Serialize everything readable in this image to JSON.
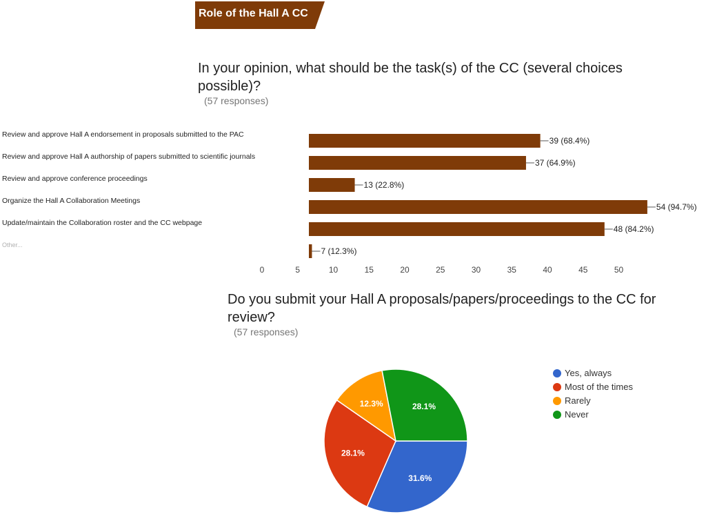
{
  "section": {
    "title": "Role of the Hall A CC",
    "color": "#7f3b08"
  },
  "chart_data": [
    {
      "type": "bar",
      "orientation": "horizontal",
      "title": "In your opinion, what should be the task(s) of the CC (several choices possible)?",
      "responses_label": "(57 responses)",
      "categories": [
        "Review and approve Hall A endorsement in proposals submitted to the PAC",
        "Review and approve Hall A authorship of papers submitted to scientific journals",
        "Review and approve conference proceedings",
        "Organize the Hall A Collaboration Meetings",
        "Update/maintain the Collaboration roster and the CC webpage",
        "Other..."
      ],
      "values": [
        39,
        37,
        13,
        54,
        48,
        7
      ],
      "data_labels": [
        "39 (68.4%)",
        "37 (64.9%)",
        "13 (22.8%)",
        "54 (94.7%)",
        "48 (84.2%)",
        "7 (12.3%)"
      ],
      "xlim": [
        0,
        55
      ],
      "ticks": [
        0,
        5,
        10,
        15,
        20,
        25,
        30,
        35,
        40,
        45,
        50
      ],
      "bar_color": "#7f3b08",
      "grid": false
    },
    {
      "type": "pie",
      "title": "Do you submit your Hall A proposals/papers/proceedings to the CC for review?",
      "responses_label": "(57 responses)",
      "slices": [
        {
          "label": "Yes, always",
          "value": 31.6,
          "display": "31.6%",
          "color": "#3366cc"
        },
        {
          "label": "Most of the times",
          "value": 28.1,
          "display": "28.1%",
          "color": "#dc3912"
        },
        {
          "label": "Rarely",
          "value": 12.3,
          "display": "12.3%",
          "color": "#ff9900"
        },
        {
          "label": "Never",
          "value": 28.1,
          "display": "28.1%",
          "color": "#109618"
        }
      ],
      "legend_position": "right"
    }
  ]
}
